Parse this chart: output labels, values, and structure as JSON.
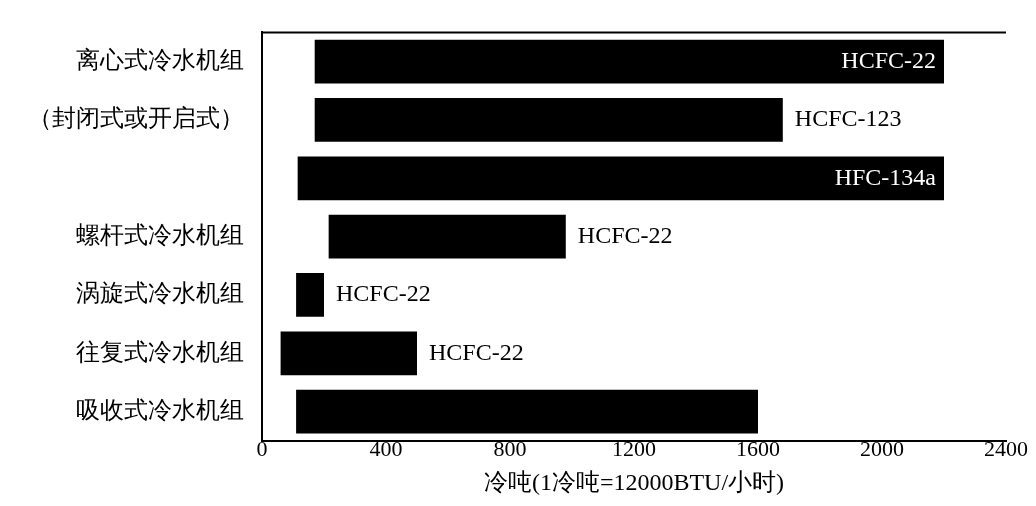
{
  "chart_data": {
    "type": "bar",
    "orientation": "horizontal",
    "categories": [
      "离心式冷水机组",
      "（封闭式或开启式）",
      null,
      "螺杆式冷水机组",
      "涡旋式冷水机组",
      "往复式冷水机组",
      "吸收式冷水机组"
    ],
    "base": [
      170,
      170,
      115,
      215,
      110,
      60,
      110
    ],
    "values": [
      2030,
      1510,
      2085,
      765,
      90,
      440,
      1490
    ],
    "value_labels": [
      "HCFC-22",
      "HCFC-123",
      "HFC-134a",
      "HCFC-22",
      "HCFC-22",
      "HCFC-22",
      null
    ],
    "color": "#000000",
    "xlim": [
      0,
      2400
    ],
    "xticks": [
      0,
      400,
      800,
      1200,
      1600,
      2000,
      2400
    ],
    "xlabel": "冷吨(1冷吨=12000BTU/小时)",
    "grid": false,
    "legend": false
  }
}
